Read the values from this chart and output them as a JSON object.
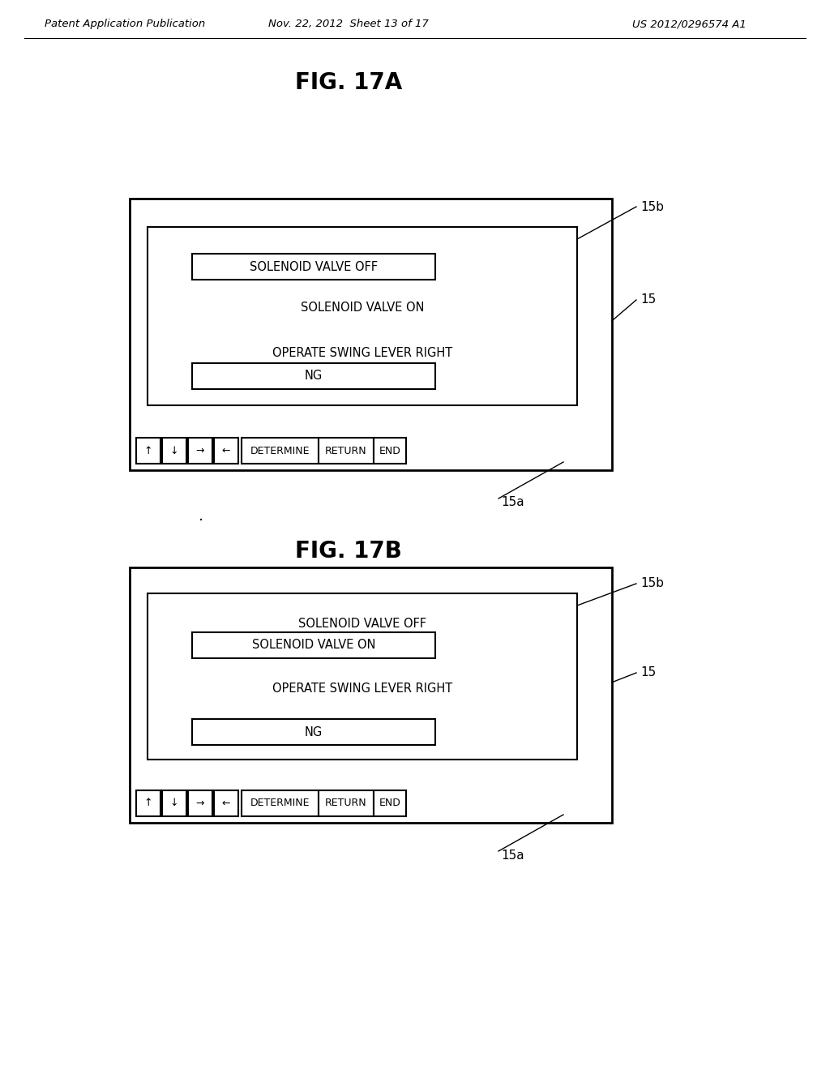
{
  "bg_color": "#ffffff",
  "header_left": "Patent Application Publication",
  "header_mid": "Nov. 22, 2012  Sheet 13 of 17",
  "header_right": "US 2012/0296574 A1",
  "fig_a_title": "FIG. 17A",
  "fig_b_title": "FIG. 17B",
  "line1_a": "SOLENOID VALVE OFF",
  "line2_a": "SOLENOID VALVE ON",
  "line3_a": "OPERATE SWING LEVER RIGHT",
  "line4_a": "NG",
  "line1_b": "SOLENOID VALVE OFF",
  "line2_b": "SOLENOID VALVE ON",
  "line3_b": "OPERATE SWING LEVER RIGHT",
  "line4_b": "NG",
  "label_15b_a": "15b",
  "label_15_a": "15",
  "label_15a_a": "15a",
  "label_15b_b": "15b",
  "label_15_b": "15",
  "label_15a_b": "15a",
  "buttons": [
    "↑",
    "↓",
    "→",
    "←",
    "DETERMINE",
    "RETURN",
    "END"
  ],
  "text_color": "#000000",
  "font_size_header": 9.5,
  "font_size_title": 20,
  "font_size_content": 10.5,
  "font_size_label": 11
}
